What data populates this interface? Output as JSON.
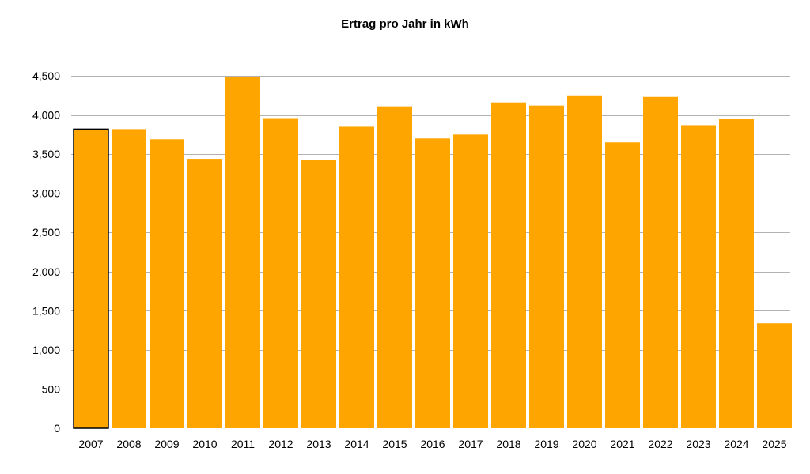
{
  "chart_data": {
    "type": "bar",
    "title": "Ertrag pro Jahr in kWh",
    "xlabel": "",
    "ylabel": "",
    "categories": [
      "2007",
      "2008",
      "2009",
      "2010",
      "2011",
      "2012",
      "2013",
      "2014",
      "2015",
      "2016",
      "2017",
      "2018",
      "2019",
      "2020",
      "2021",
      "2022",
      "2023",
      "2024",
      "2025"
    ],
    "values": [
      3820,
      3820,
      3690,
      3440,
      4490,
      3960,
      3430,
      3850,
      4110,
      3700,
      3750,
      4160,
      4120,
      4250,
      3650,
      4230,
      3870,
      3950,
      1340
    ],
    "ylim": [
      0,
      4500
    ],
    "yticks": [
      0,
      500,
      1000,
      1500,
      2000,
      2500,
      3000,
      3500,
      4000,
      4500
    ],
    "ytick_labels": [
      "0",
      "500",
      "1,000",
      "1,500",
      "2,000",
      "2,500",
      "3,000",
      "3,500",
      "4,000",
      "4,500"
    ],
    "grid": true,
    "legend": "none",
    "bar_color": "#FFA500",
    "highlighted_category": "2007",
    "highlight_outline_color": "#000000",
    "grid_color": "#B3B3B3"
  }
}
